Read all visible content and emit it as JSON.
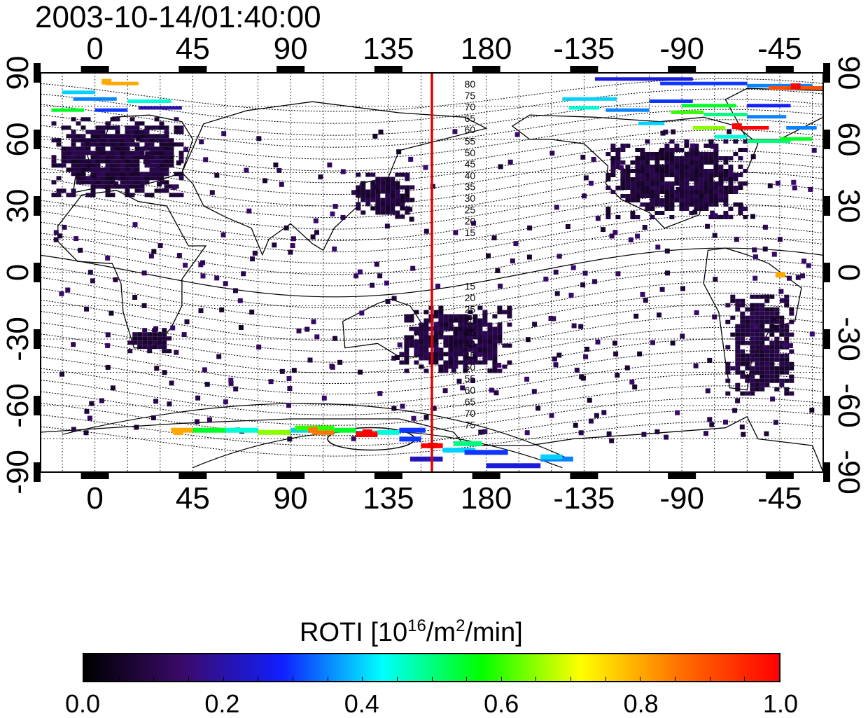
{
  "title": "2003-10-14/01:40:00",
  "top_lon_ticks": [
    "0",
    "45",
    "90",
    "135",
    "180",
    "-135",
    "-90",
    "-45"
  ],
  "bottom_lon_ticks": [
    "0",
    "45",
    "90",
    "135",
    "180",
    "-135",
    "-90",
    "-45"
  ],
  "left_lat_ticks": [
    "90",
    "60",
    "30",
    "0",
    "-30",
    "-60",
    "-90"
  ],
  "right_lat_ticks": [
    "90",
    "60",
    "30",
    "0",
    "-30",
    "-60",
    "-90"
  ],
  "contour_labels_north": [
    "80",
    "75",
    "70",
    "65",
    "60",
    "55",
    "50",
    "45",
    "40",
    "35",
    "30",
    "25",
    "20",
    "15"
  ],
  "contour_labels_south": [
    "15",
    "20",
    "25",
    "30",
    "35",
    "40",
    "45",
    "50",
    "55",
    "60",
    "65",
    "70",
    "75"
  ],
  "meridian_line_lon": 155,
  "meridian_line_color": "#e00000",
  "colorbar": {
    "title_main": "ROTI  [10",
    "title_sup1": "16",
    "title_mid": "/m",
    "title_sup2": "2",
    "title_end": "/min]",
    "ticks": [
      "0.0",
      "0.2",
      "0.4",
      "0.6",
      "0.8",
      "1.0"
    ],
    "range": [
      0.0,
      1.0
    ],
    "colors": [
      "#000000",
      "#3a0a6a",
      "#1020ff",
      "#00ffff",
      "#00ff00",
      "#ffff00",
      "#ff7000",
      "#ff0000"
    ]
  },
  "chart_data": {
    "type": "heatmap",
    "title": "2003-10-14/01:40:00",
    "xlabel": "",
    "ylabel": "",
    "xlim": [
      -25,
      335
    ],
    "ylim": [
      -90,
      90
    ],
    "grid": true,
    "colorbar_label": "ROTI  [10^16/m^2/min]",
    "clim": [
      0.0,
      1.0
    ],
    "regions": [
      {
        "name": "Europe",
        "lon": [
          -20,
          40
        ],
        "lat": [
          35,
          70
        ],
        "roti": 0.05
      },
      {
        "name": "North America",
        "lon": [
          235,
          300
        ],
        "lat": [
          25,
          60
        ],
        "roti": 0.05
      },
      {
        "name": "Japan-East Asia",
        "lon": [
          120,
          145
        ],
        "lat": [
          25,
          45
        ],
        "roti": 0.05
      },
      {
        "name": "Australia",
        "lon": [
          140,
          190
        ],
        "lat": [
          -45,
          -15
        ],
        "roti": 0.05
      },
      {
        "name": "South America",
        "lon": [
          290,
          320
        ],
        "lat": [
          -55,
          -10
        ],
        "roti": 0.05
      },
      {
        "name": "Southern Africa",
        "lon": [
          15,
          35
        ],
        "lat": [
          -35,
          -25
        ],
        "roti": 0.05
      }
    ],
    "high_roti_points": [
      {
        "lon": 5,
        "lat": 86,
        "roti": 0.8
      },
      {
        "lon": 322,
        "lat": 84,
        "roti": 1.0
      },
      {
        "lon": 295,
        "lat": 66,
        "roti": 1.0
      },
      {
        "lon": 155,
        "lat": -78,
        "roti": 1.0
      },
      {
        "lon": 125,
        "lat": -72,
        "roti": 1.0
      },
      {
        "lon": 100,
        "lat": -71,
        "roti": 0.85
      },
      {
        "lon": 38,
        "lat": -72,
        "roti": 0.8
      },
      {
        "lon": 315,
        "lat": -1,
        "roti": 0.8
      }
    ]
  }
}
